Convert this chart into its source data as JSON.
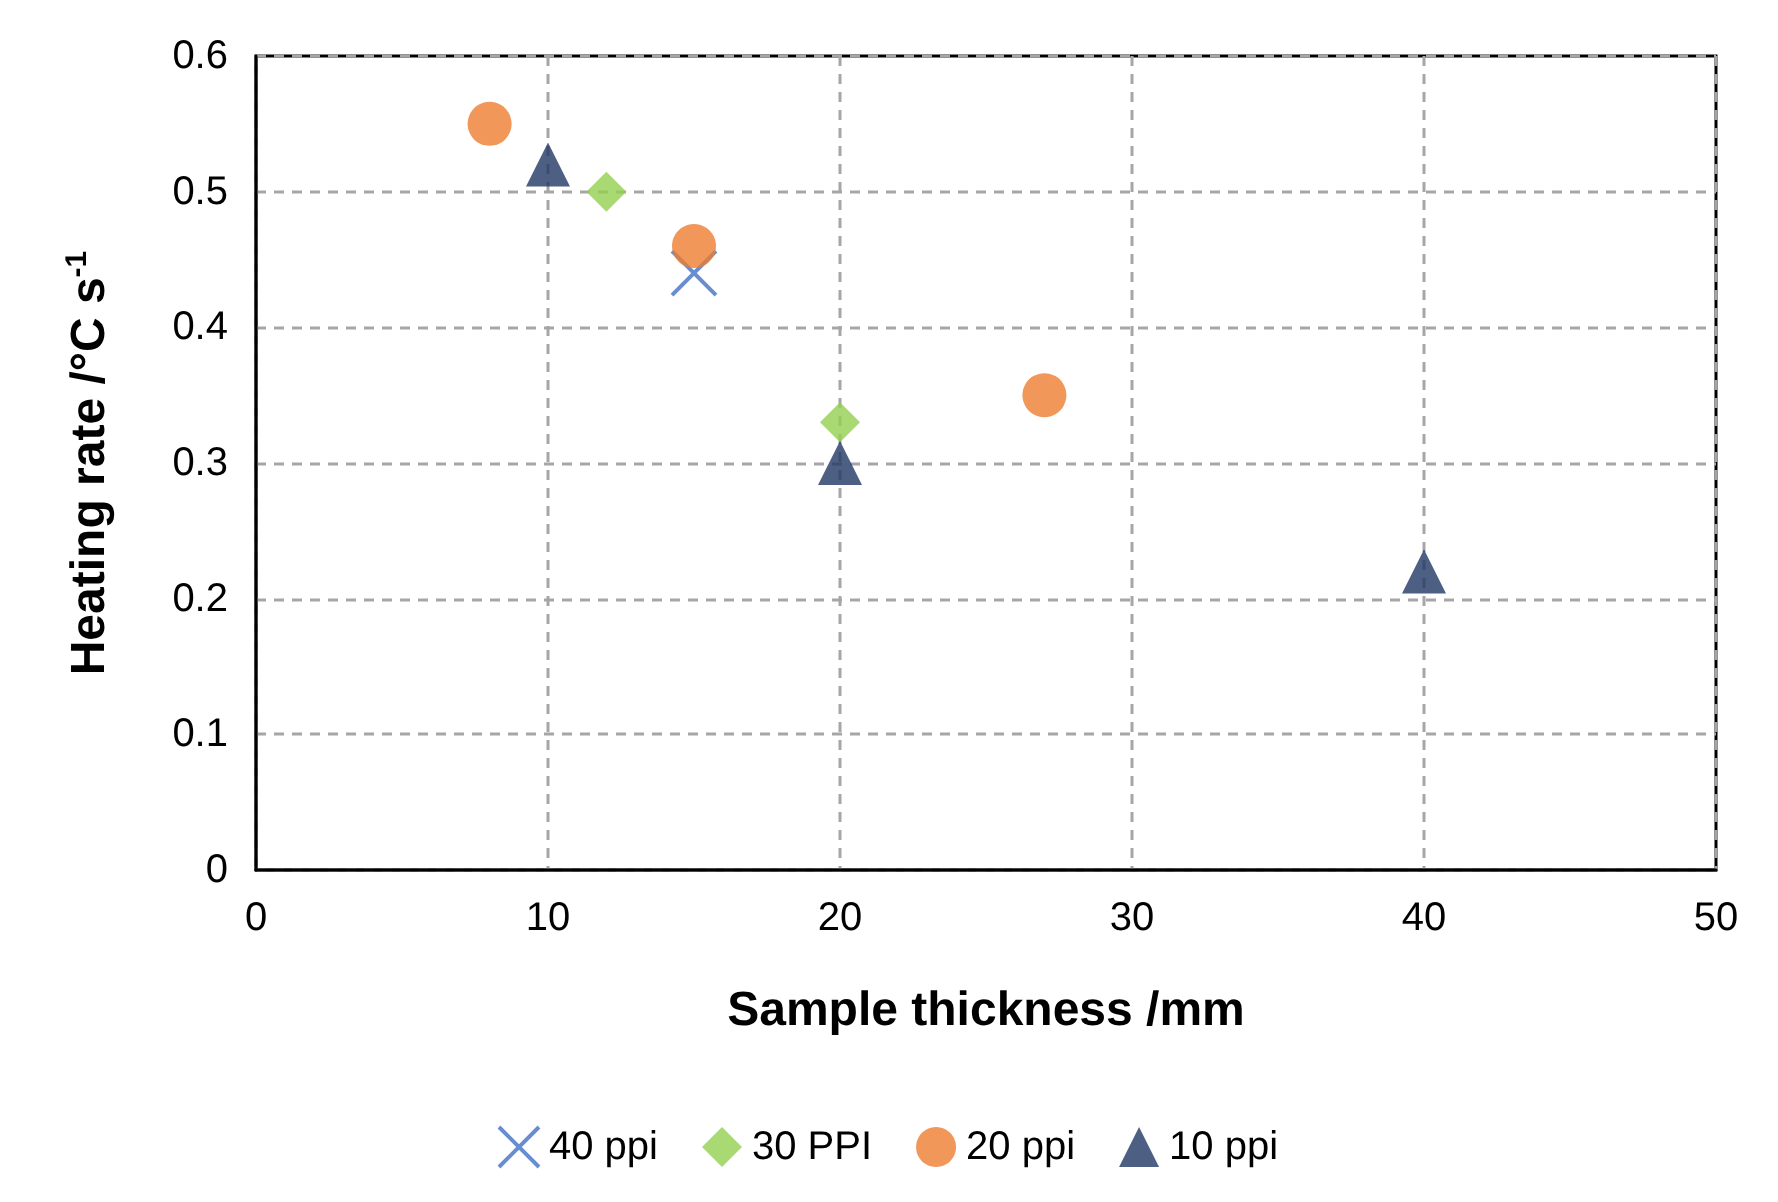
{
  "chart_data": {
    "type": "scatter",
    "xlabel": "Sample thickness /mm",
    "ylabel": "Heating rate /°C s$^{-1}$",
    "xlim": [
      0,
      50
    ],
    "xticks": [
      0,
      10,
      20,
      30,
      40,
      50
    ],
    "ylim": [
      0,
      0.6
    ],
    "yticks": [
      0,
      0.1,
      0.2,
      0.3,
      0.4,
      0.5,
      0.6
    ],
    "grid": true,
    "legend": "bottom",
    "series": [
      {
        "name": "40 ppi",
        "color": "#4472c4",
        "marker": "cross",
        "x": [
          15
        ],
        "values": [
          0.44
        ]
      },
      {
        "name": "30 PPI",
        "color": "#92d050",
        "marker": "diamond",
        "x": [
          12,
          20
        ],
        "values": [
          0.5,
          0.33
        ]
      },
      {
        "name": "20 ppi",
        "color": "#ed7d31",
        "marker": "circle",
        "x": [
          8,
          15,
          27
        ],
        "values": [
          0.55,
          0.46,
          0.35
        ]
      },
      {
        "name": "10 ppi",
        "color": "#203864",
        "marker": "triangle",
        "x": [
          10,
          20,
          40
        ],
        "values": [
          0.52,
          0.3,
          0.22
        ]
      }
    ]
  }
}
